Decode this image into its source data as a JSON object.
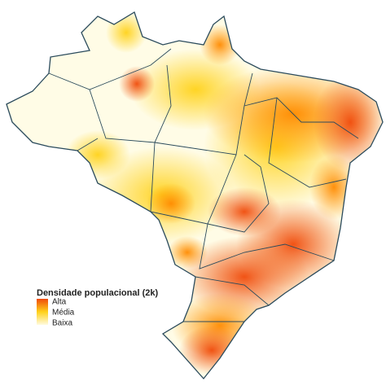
{
  "legend": {
    "title": "Densidade populacional (2k)",
    "labels": [
      "Alta",
      "Média",
      "Baixa"
    ]
  }
}
